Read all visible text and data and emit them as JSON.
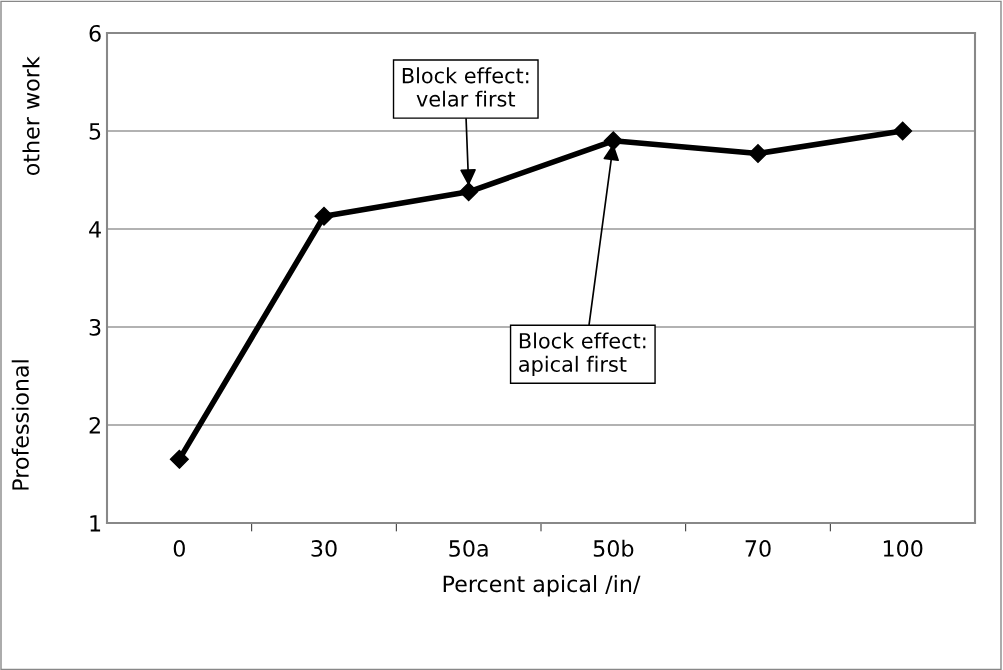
{
  "chart_data": {
    "type": "line",
    "categories": [
      "0",
      "30",
      "50a",
      "50b",
      "70",
      "100"
    ],
    "series": [
      {
        "color": "#000000",
        "values": [
          1.65,
          4.13,
          4.38,
          4.9,
          4.77,
          5.0
        ]
      }
    ],
    "xlabel": "Percent apical /in/",
    "ylabel": "Professional",
    "ylim": [
      1,
      6
    ],
    "yticks": [
      1,
      2,
      3,
      4,
      5,
      6
    ],
    "grid": "y",
    "marker": "diamond",
    "line_style": "solid",
    "legend": false,
    "annotations": [
      "other work",
      {
        "text": "Block effect:\nvelar first",
        "x": "50a",
        "y": 4.38
      },
      {
        "text": "Block effect:\napical first",
        "x": "50b",
        "y": 4.9
      }
    ]
  }
}
